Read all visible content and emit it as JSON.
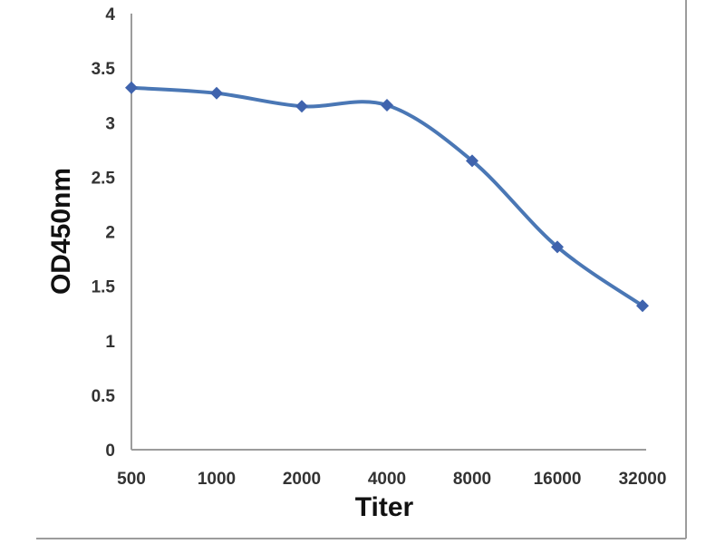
{
  "chart_data": {
    "type": "line",
    "title": "",
    "xlabel": "Titer",
    "ylabel": "OD450nm",
    "categories": [
      "500",
      "1000",
      "2000",
      "4000",
      "8000",
      "16000",
      "32000"
    ],
    "series": [
      {
        "name": "OD450nm",
        "values": [
          3.32,
          3.27,
          3.15,
          3.16,
          2.65,
          1.86,
          1.32
        ]
      }
    ],
    "ylim": [
      0,
      4
    ],
    "ytick_step": 0.5,
    "yticks": [
      "0",
      "0.5",
      "1",
      "1.5",
      "2",
      "2.5",
      "3",
      "3.5",
      "4"
    ],
    "grid": false,
    "legend": "none",
    "line_style": "smooth",
    "marker": "diamond",
    "colors": {
      "line": "#4a77b5",
      "marker": "#3f63ad",
      "axis": "#9c9c9c",
      "frame": "#9c9c9c",
      "tick_label": "#333333",
      "axis_title": "#111111",
      "background": "#ffffff"
    }
  }
}
